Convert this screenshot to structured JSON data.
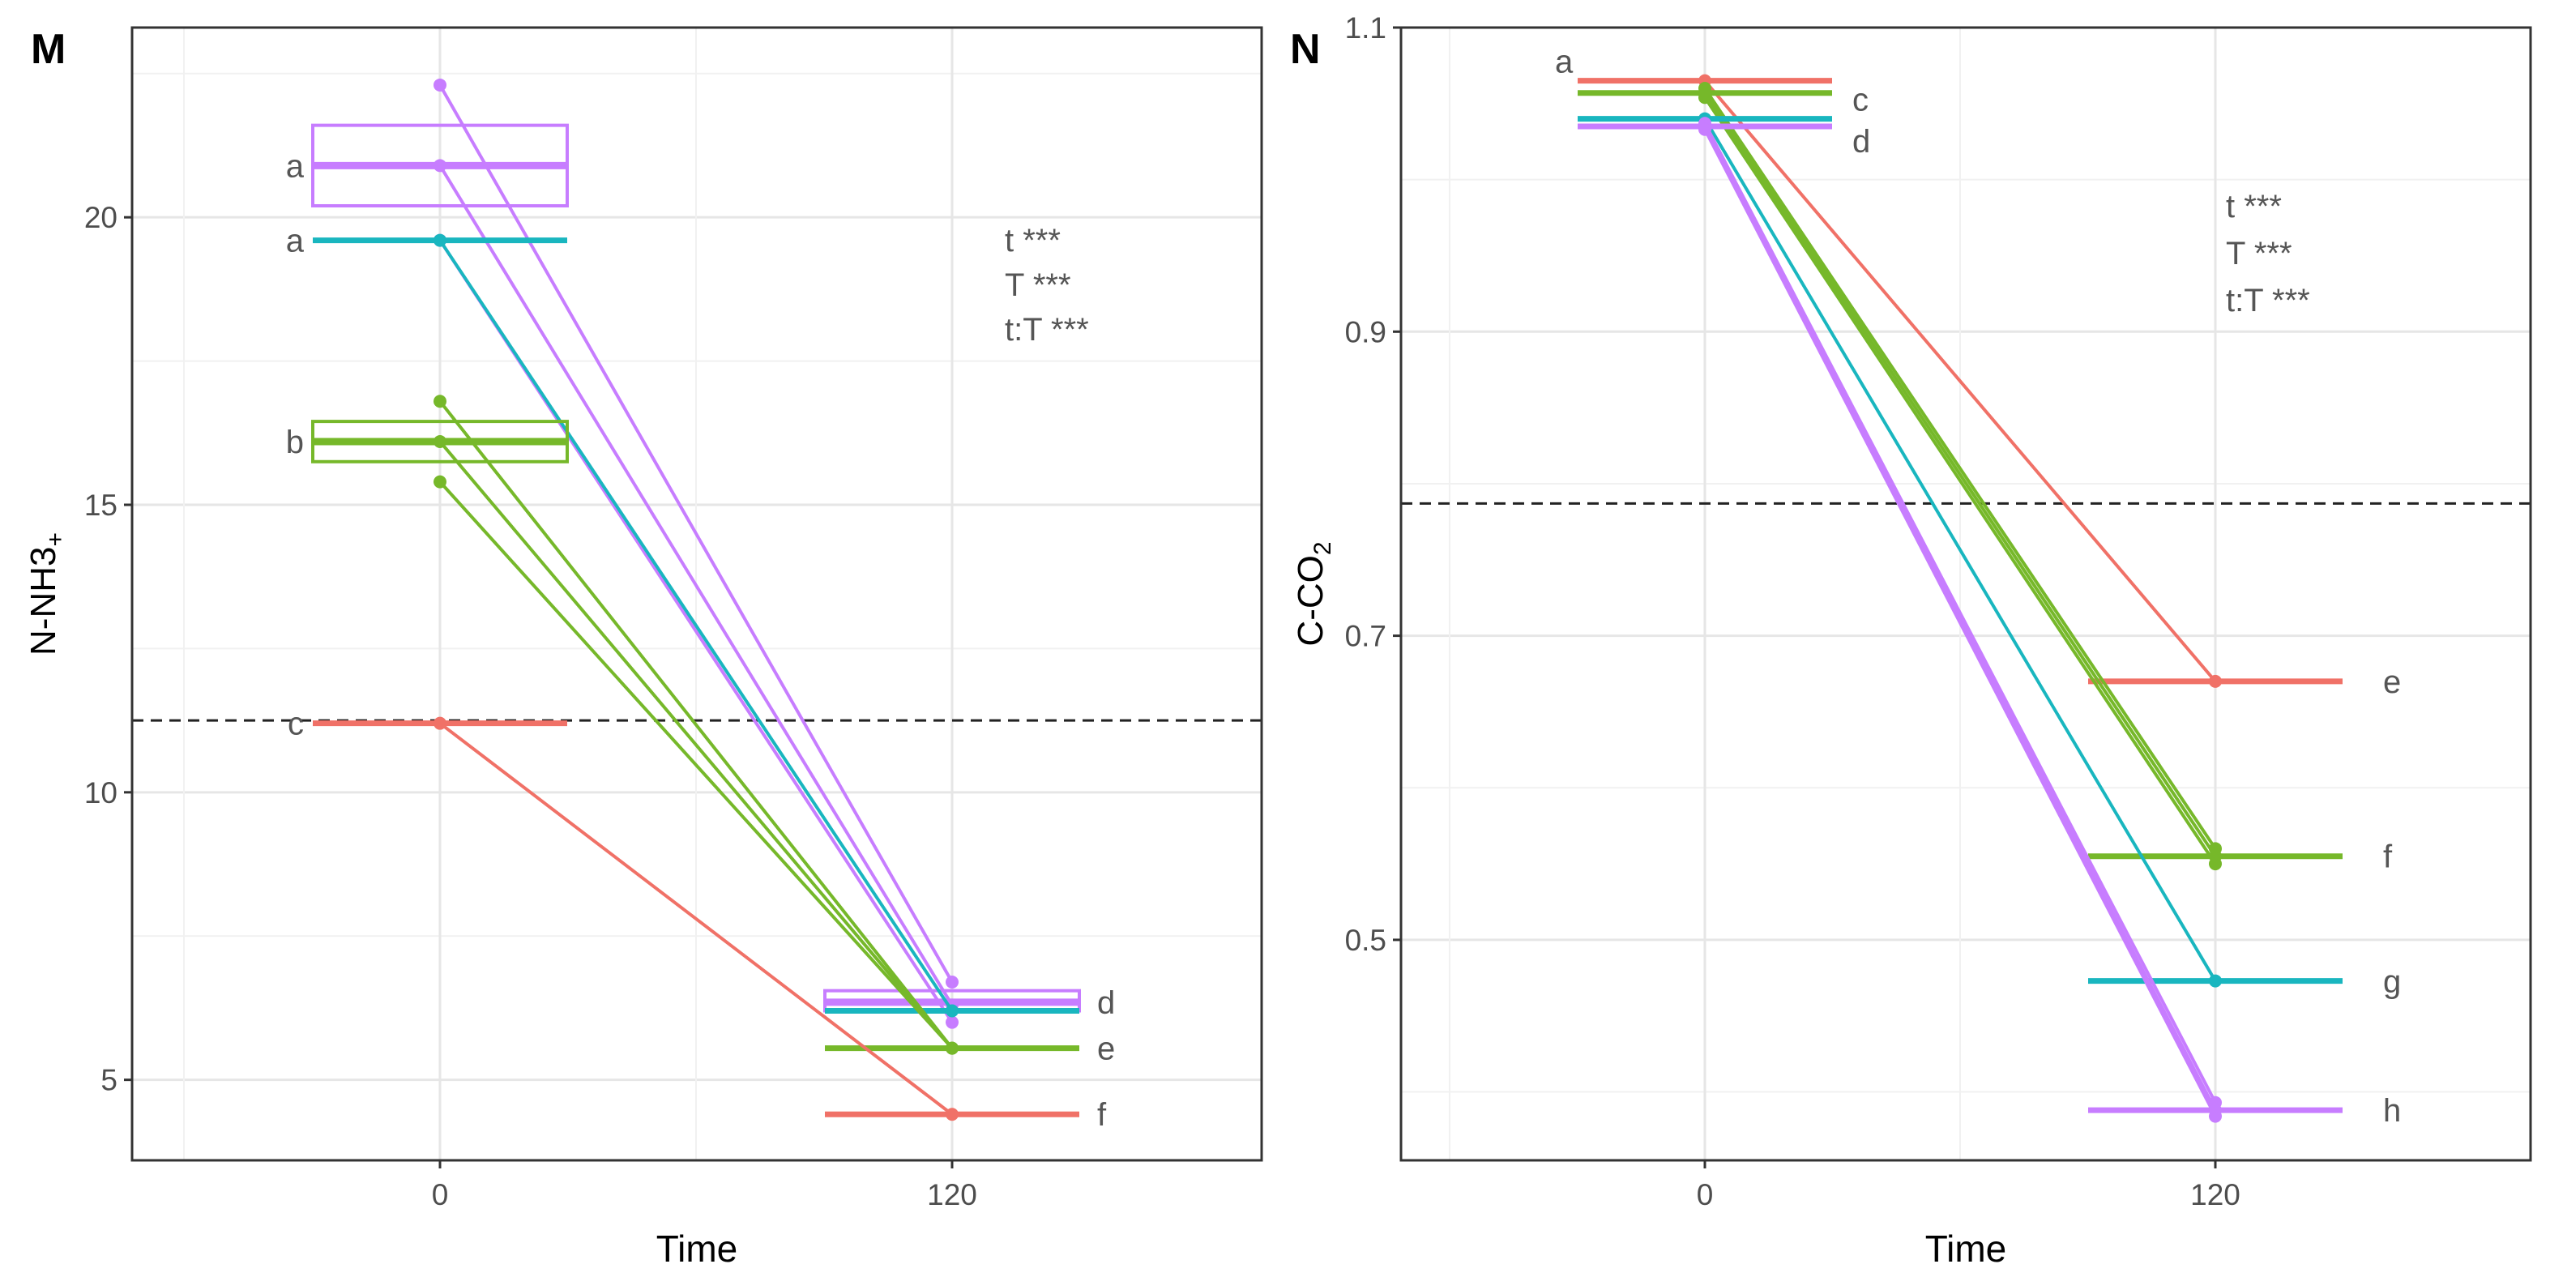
{
  "colors": {
    "red": "#f07167",
    "purple": "#c77dff",
    "teal": "#19b6bf",
    "green": "#76b82a",
    "grid": "#e6e6e6",
    "axis": "#333333",
    "tick_text": "#4d4d4d"
  },
  "chart_data": [
    {
      "type": "line",
      "panel_label": "M",
      "xlabel": "Time",
      "ylabel": "N-NH3+",
      "x_categories": [
        "0",
        "120"
      ],
      "yticks": [
        "5",
        "10",
        "15",
        "20"
      ],
      "ylim": [
        3.6,
        23.3
      ],
      "reference_line": 11.25,
      "stats_text": [
        "t ***",
        "T ***",
        "t:T ***"
      ],
      "series": [
        {
          "color_key": "purple",
          "points": [
            [
              22.3,
              6.7
            ],
            [
              20.9,
              6.3
            ],
            [
              19.6,
              6.0
            ]
          ],
          "box_0": [
            20.2,
            20.9,
            21.6
          ],
          "box_120": [
            6.2,
            6.35,
            6.55
          ],
          "letter_0": "a",
          "letter_120": "d"
        },
        {
          "color_key": "teal",
          "points": [
            [
              19.6,
              6.2
            ]
          ],
          "box_0": [
            19.6,
            19.6,
            19.6
          ],
          "box_120": [
            6.2,
            6.2,
            6.2
          ],
          "letter_0": "a",
          "letter_120": ""
        },
        {
          "color_key": "green",
          "points": [
            [
              16.8,
              5.55
            ],
            [
              16.1,
              5.55
            ],
            [
              15.4,
              5.55
            ]
          ],
          "box_0": [
            15.75,
            16.1,
            16.45
          ],
          "box_120": [
            5.55,
            5.55,
            5.55
          ],
          "letter_0": "b",
          "letter_120": "e"
        },
        {
          "color_key": "red",
          "points": [
            [
              11.2,
              4.4
            ]
          ],
          "box_0": [
            11.2,
            11.2,
            11.2
          ],
          "box_120": [
            4.4,
            4.4,
            4.4
          ],
          "letter_0": "c",
          "letter_120": "f"
        }
      ]
    },
    {
      "type": "line",
      "panel_label": "N",
      "xlabel": "Time",
      "ylabel": "C-CO2",
      "x_categories": [
        "0",
        "120"
      ],
      "yticks": [
        "0.5",
        "0.7",
        "0.9",
        "1.1"
      ],
      "ylim": [
        0.355,
        1.1
      ],
      "reference_line": 0.787,
      "stats_text": [
        "t ***",
        "T ***",
        "t:T ***"
      ],
      "series": [
        {
          "color_key": "red",
          "points": [
            [
              1.065,
              0.67
            ]
          ],
          "box_0": [
            1.065,
            1.065,
            1.065
          ],
          "box_120": [
            0.67,
            0.67,
            0.67
          ],
          "letter_0": "a",
          "letter_120": "e"
        },
        {
          "color_key": "green",
          "points": [
            [
              1.06,
              0.56
            ],
            [
              1.057,
              0.555
            ],
            [
              1.054,
              0.55
            ]
          ],
          "box_0": [
            1.057,
            1.057,
            1.057
          ],
          "box_120": [
            0.555,
            0.555,
            0.555
          ],
          "letter_0": "c",
          "letter_120": "f"
        },
        {
          "color_key": "teal",
          "points": [
            [
              1.04,
              0.473
            ]
          ],
          "box_0": [
            1.04,
            1.04,
            1.04
          ],
          "box_120": [
            0.473,
            0.473,
            0.473
          ],
          "letter_0": "",
          "letter_120": "g"
        },
        {
          "color_key": "purple",
          "points": [
            [
              1.037,
              0.393
            ],
            [
              1.035,
              0.388
            ],
            [
              1.033,
              0.384
            ]
          ],
          "box_0": [
            1.035,
            1.035,
            1.035
          ],
          "box_120": [
            0.388,
            0.388,
            0.388
          ],
          "letter_0": "d",
          "letter_120": "h"
        }
      ]
    }
  ]
}
